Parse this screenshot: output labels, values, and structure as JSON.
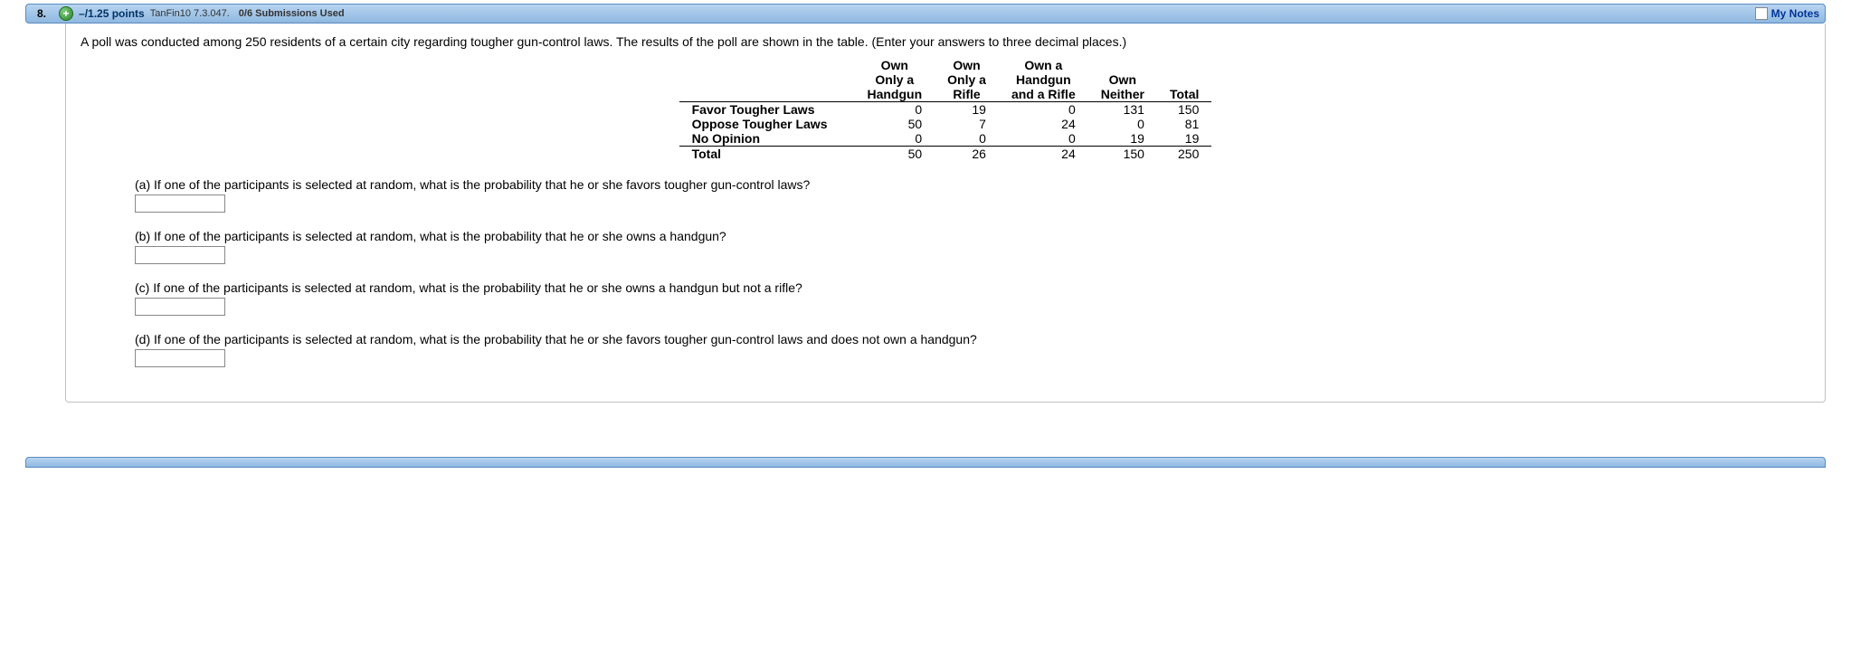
{
  "header": {
    "number": "8.",
    "expand_glyph": "+",
    "points": "–/1.25 points",
    "source": "TanFin10 7.3.047.",
    "submissions": "0/6 Submissions Used",
    "my_notes": "My Notes"
  },
  "intro": "A poll was conducted among 250 residents of a certain city regarding tougher gun-control laws. The results of the poll are shown in the table. (Enter your answers to three decimal places.)",
  "table": {
    "col_headers": {
      "c1a": "Own",
      "c1b": "Only a",
      "c1c": "Handgun",
      "c2a": "Own",
      "c2b": "Only a",
      "c2c": "Rifle",
      "c3a": "Own a",
      "c3b": "Handgun",
      "c3c": "and a Rifle",
      "c4a": "Own",
      "c4b": "Neither",
      "c5": "Total"
    },
    "rows": [
      {
        "label": "Favor Tougher Laws",
        "c1": "0",
        "c2": "19",
        "c3": "0",
        "c4": "131",
        "c5": "150"
      },
      {
        "label": "Oppose Tougher Laws",
        "c1": "50",
        "c2": "7",
        "c3": "24",
        "c4": "0",
        "c5": "81"
      },
      {
        "label": "No Opinion",
        "c1": "0",
        "c2": "0",
        "c3": "0",
        "c4": "19",
        "c5": "19"
      },
      {
        "label": "Total",
        "c1": "50",
        "c2": "26",
        "c3": "24",
        "c4": "150",
        "c5": "250"
      }
    ]
  },
  "questions": {
    "a": "(a) If one of the participants is selected at random, what is the probability that he or she favors tougher gun-control laws?",
    "b": "(b) If one of the participants is selected at random, what is the probability that he or she owns a handgun?",
    "c": "(c) If one of the participants is selected at random, what is the probability that he or she owns a handgun but not a rifle?",
    "d": "(d) If one of the participants is selected at random, what is the probability that he or she favors tougher gun-control laws and does not own a handgun?"
  }
}
